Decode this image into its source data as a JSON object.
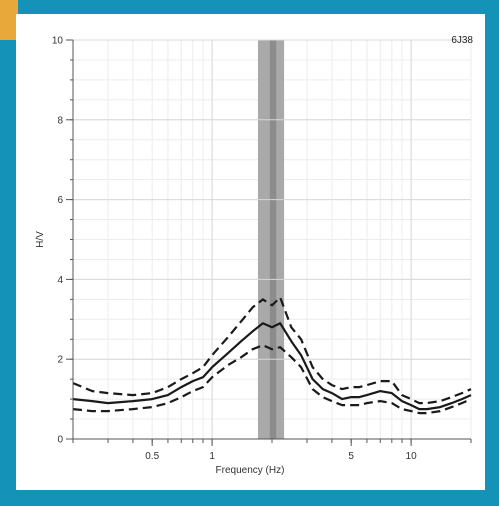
{
  "chart_data": {
    "type": "line",
    "station_label": "6J38",
    "xlabel": "Frequency (Hz)",
    "ylabel": "H/V",
    "x_scale": "log",
    "xlim": [
      0.2,
      20
    ],
    "ylim": [
      0,
      10
    ],
    "x_ticks": [
      0.5,
      1,
      5,
      10
    ],
    "x_tick_labels": [
      "0.5",
      "1",
      "5",
      "10"
    ],
    "y_ticks": [
      0,
      2,
      4,
      6,
      8,
      10
    ],
    "y_tick_labels": [
      "0",
      "2",
      "4",
      "6",
      "8",
      "10"
    ],
    "grid": true,
    "peak_band": {
      "outer": [
        1.7,
        2.3
      ],
      "inner": [
        1.95,
        2.1
      ]
    },
    "series": [
      {
        "style": "solid",
        "x": [
          0.2,
          0.25,
          0.3,
          0.4,
          0.5,
          0.6,
          0.7,
          0.8,
          0.9,
          1.0,
          1.2,
          1.4,
          1.6,
          1.8,
          2.0,
          2.2,
          2.5,
          2.8,
          3.2,
          3.6,
          4.0,
          4.5,
          5.0,
          5.5,
          6.0,
          7.0,
          8.0,
          9.0,
          10.0,
          11.0,
          12.0,
          14.0,
          16.0,
          18.0,
          20.0
        ],
        "values": [
          1.0,
          0.95,
          0.9,
          0.95,
          1.0,
          1.1,
          1.3,
          1.45,
          1.55,
          1.8,
          2.15,
          2.45,
          2.7,
          2.9,
          2.8,
          2.9,
          2.45,
          2.1,
          1.5,
          1.25,
          1.15,
          1.0,
          1.05,
          1.05,
          1.1,
          1.2,
          1.15,
          0.95,
          0.85,
          0.75,
          0.75,
          0.8,
          0.9,
          1.0,
          1.1
        ]
      },
      {
        "style": "dashed",
        "x": [
          0.2,
          0.25,
          0.3,
          0.4,
          0.5,
          0.6,
          0.7,
          0.8,
          0.9,
          1.0,
          1.2,
          1.4,
          1.6,
          1.8,
          2.0,
          2.2,
          2.5,
          2.8,
          3.2,
          3.6,
          4.0,
          4.5,
          5.0,
          5.5,
          6.0,
          7.0,
          8.0,
          9.0,
          10.0,
          11.0,
          12.0,
          14.0,
          16.0,
          18.0,
          20.0
        ],
        "values": [
          1.4,
          1.2,
          1.15,
          1.1,
          1.15,
          1.3,
          1.5,
          1.65,
          1.8,
          2.1,
          2.55,
          2.95,
          3.3,
          3.5,
          3.35,
          3.55,
          2.8,
          2.5,
          1.8,
          1.5,
          1.35,
          1.25,
          1.3,
          1.3,
          1.35,
          1.45,
          1.45,
          1.1,
          1.0,
          0.9,
          0.9,
          0.95,
          1.05,
          1.15,
          1.25
        ]
      },
      {
        "style": "dashed",
        "x": [
          0.2,
          0.25,
          0.3,
          0.4,
          0.5,
          0.6,
          0.7,
          0.8,
          0.9,
          1.0,
          1.2,
          1.4,
          1.6,
          1.8,
          2.0,
          2.2,
          2.5,
          2.8,
          3.2,
          3.6,
          4.0,
          4.5,
          5.0,
          5.5,
          6.0,
          7.0,
          8.0,
          9.0,
          10.0,
          11.0,
          12.0,
          14.0,
          16.0,
          18.0,
          20.0
        ],
        "values": [
          0.75,
          0.7,
          0.7,
          0.75,
          0.8,
          0.9,
          1.05,
          1.2,
          1.3,
          1.55,
          1.85,
          2.05,
          2.25,
          2.35,
          2.25,
          2.3,
          2.05,
          1.8,
          1.25,
          1.05,
          0.95,
          0.85,
          0.85,
          0.85,
          0.9,
          0.95,
          0.9,
          0.75,
          0.7,
          0.65,
          0.65,
          0.7,
          0.8,
          0.9,
          1.0
        ]
      }
    ]
  }
}
